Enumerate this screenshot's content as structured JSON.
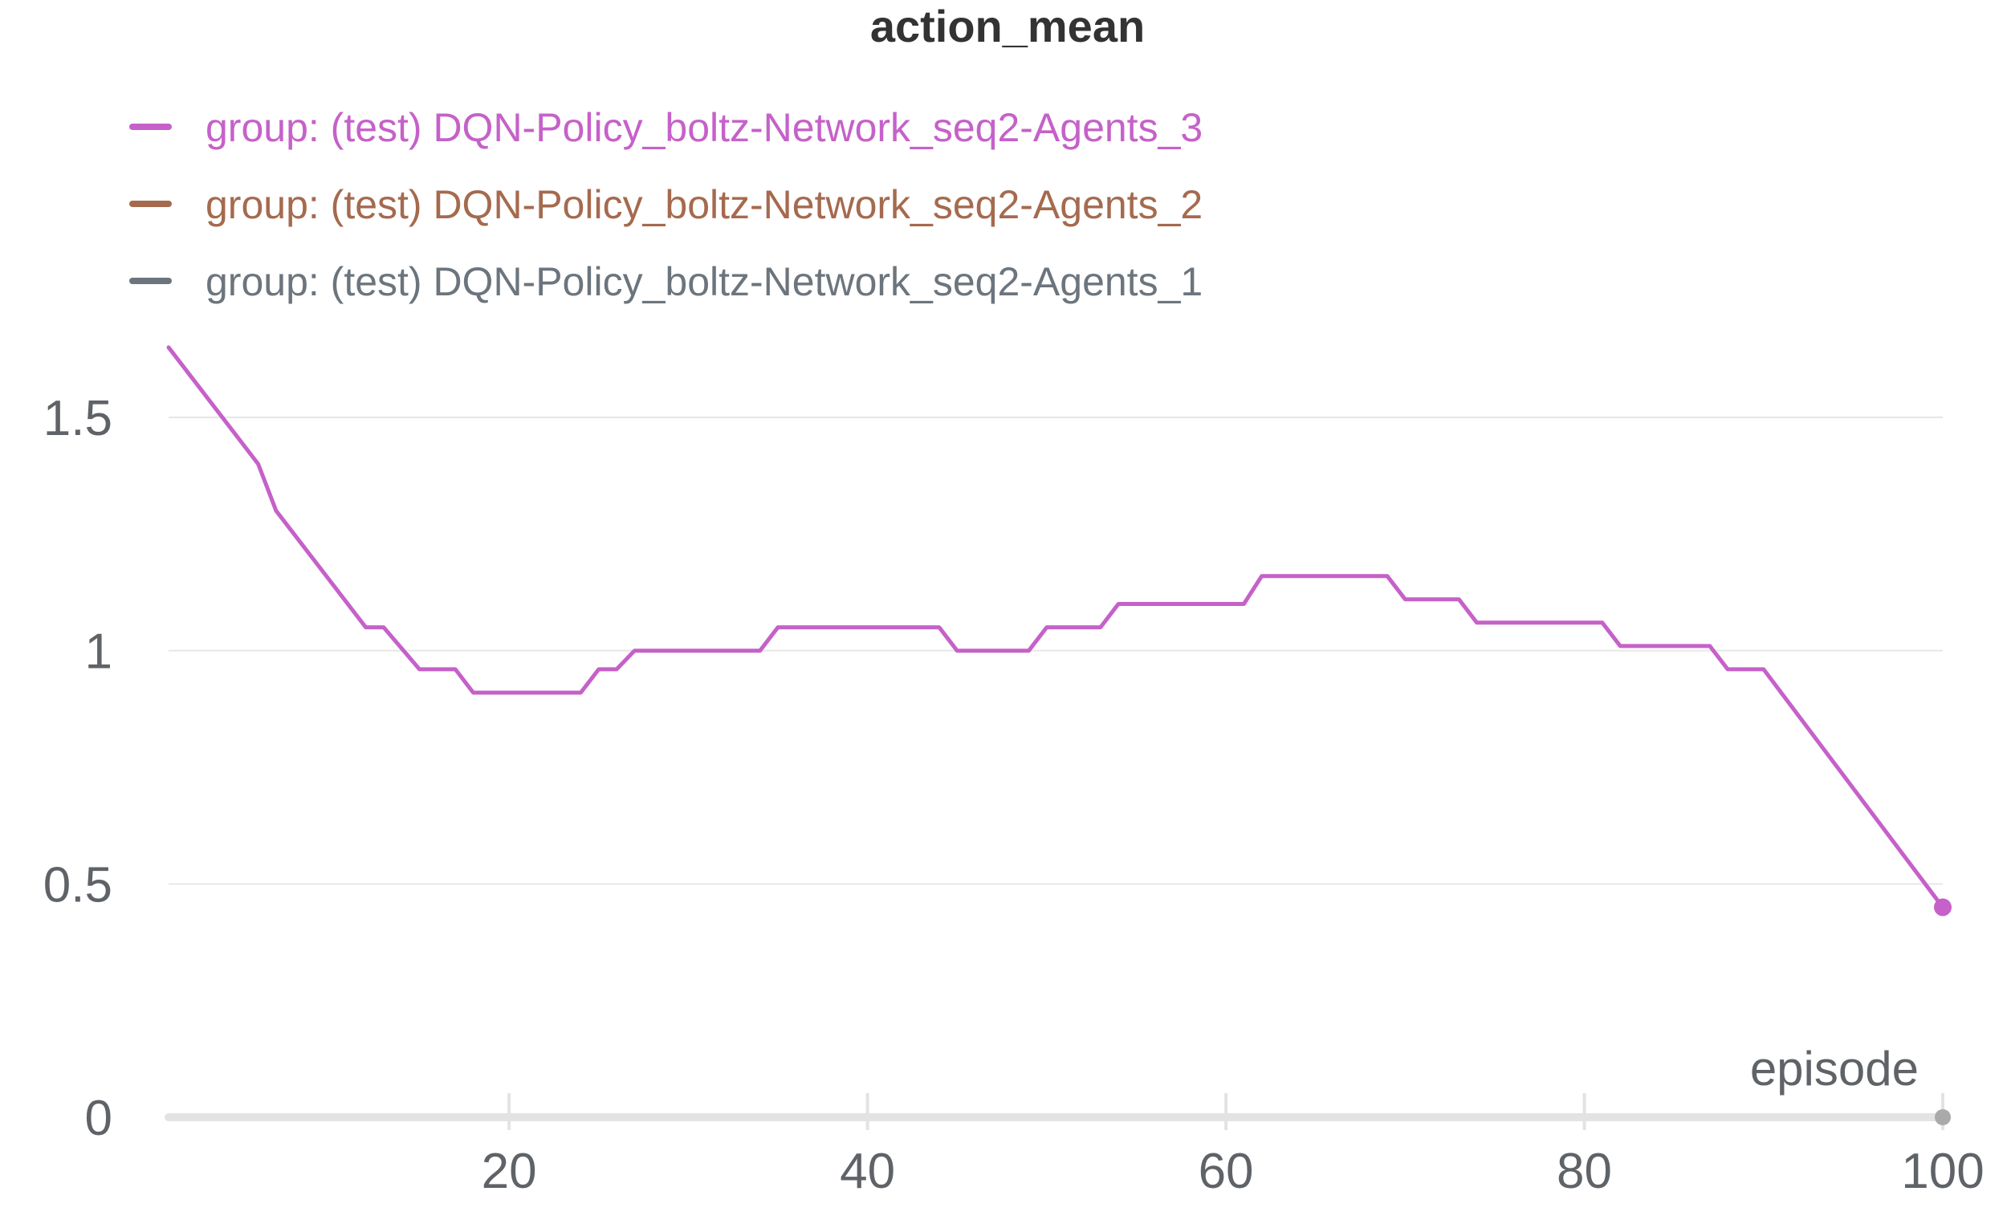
{
  "chart_data": {
    "type": "line",
    "title": "action_mean",
    "xlabel": "episode",
    "ylabel": "",
    "xlim": [
      1,
      100
    ],
    "ylim": [
      0,
      1.7
    ],
    "x_ticks": [
      20,
      40,
      60,
      80,
      100
    ],
    "y_ticks": [
      0,
      0.5,
      1,
      1.5
    ],
    "y_tick_labels": [
      "0",
      "0.5",
      "1",
      "1.5"
    ],
    "grid": true,
    "legend_position": "top-left",
    "series": [
      {
        "name": "group: (test) DQN-Policy_boltz-Network_seq2-Agents_3",
        "color": "#c561c9",
        "x": [
          1,
          6,
          7,
          12,
          13,
          15,
          17,
          18,
          19,
          24,
          25,
          26,
          27,
          34,
          35,
          36,
          37,
          38,
          44,
          45,
          46,
          49,
          50,
          53,
          54,
          55,
          61,
          62,
          65,
          69,
          70,
          73,
          74,
          75,
          79,
          80,
          81,
          82,
          83,
          87,
          88,
          90,
          100
        ],
        "values": [
          1.65,
          1.4,
          1.3,
          1.05,
          1.05,
          0.96,
          0.96,
          0.91,
          0.91,
          0.91,
          0.96,
          0.96,
          1.0,
          1.0,
          1.05,
          1.05,
          1.05,
          1.05,
          1.05,
          1.0,
          1.0,
          1.0,
          1.05,
          1.05,
          1.1,
          1.1,
          1.1,
          1.16,
          1.16,
          1.16,
          1.11,
          1.11,
          1.06,
          1.06,
          1.06,
          1.06,
          1.06,
          1.01,
          1.01,
          1.01,
          0.96,
          0.96,
          0.45
        ],
        "end_marker": true
      },
      {
        "name": "group: (test) DQN-Policy_boltz-Network_seq2-Agents_2",
        "color": "#a56a4e",
        "x": [],
        "values": []
      },
      {
        "name": "group: (test) DQN-Policy_boltz-Network_seq2-Agents_1",
        "color": "#6c757d",
        "x": [],
        "values": []
      }
    ]
  },
  "colors": {
    "title": "#333333",
    "tick_label": "#5f6368",
    "grid": "#e6e6e6",
    "axis_bar": "#e3e3e3",
    "x_ticks": "#e3e3e3",
    "end_dot": "#aaaaaa"
  }
}
